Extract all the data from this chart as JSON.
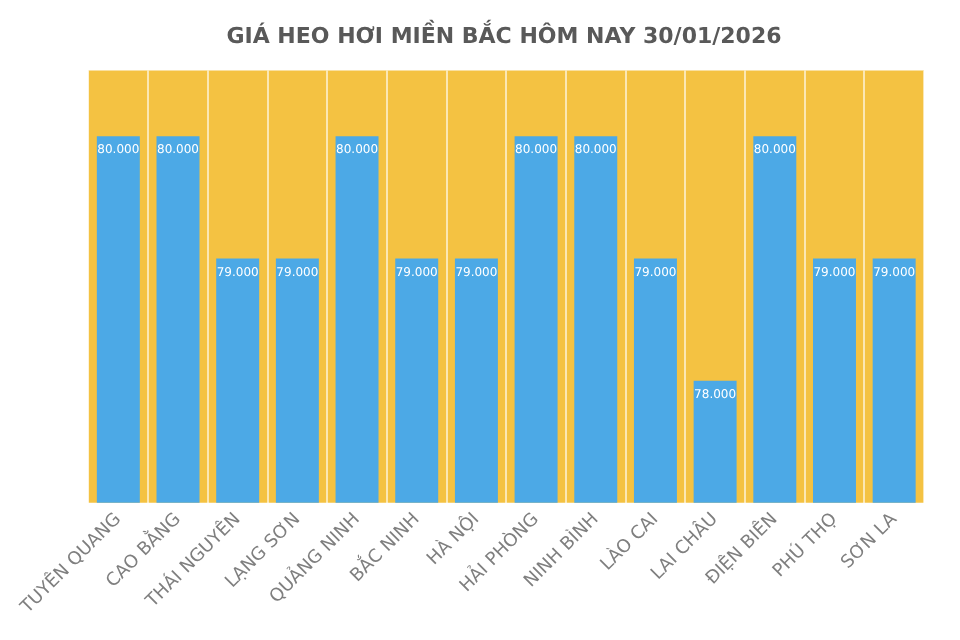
{
  "chart_data": {
    "type": "bar",
    "title": "GIÁ HEO HƠI MIỀN BẮC HÔM NAY 30/01/2026",
    "categories": [
      "TUYÊN QUANG",
      "CAO BẰNG",
      "THÁI NGUYÊN",
      "LẠNG SƠN",
      "QUẢNG NINH",
      "BẮC NINH",
      "HÀ NỘI",
      "HẢI PHÒNG",
      "NINH BÌNH",
      "LÀO CAI",
      "LAI CHÂU",
      "ĐIỆN BIÊN",
      "PHÚ THỌ",
      "SƠN LA"
    ],
    "values": [
      80000,
      80000,
      79000,
      79000,
      80000,
      79000,
      79000,
      80000,
      80000,
      79000,
      78000,
      80000,
      79000,
      79000
    ],
    "value_labels": [
      "80.000",
      "80.000",
      "79.000",
      "79.000",
      "80.000",
      "79.000",
      "79.000",
      "80.000",
      "80.000",
      "79.000",
      "78.000",
      "80.000",
      "79.000",
      "79.000"
    ],
    "color": "#4ca9e6",
    "ylim": [
      77000,
      80540
    ],
    "grid": "x",
    "tick_labels": "x"
  }
}
